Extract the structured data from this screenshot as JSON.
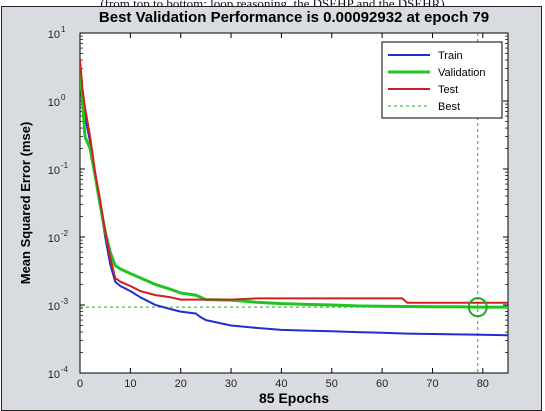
{
  "caption": "(from top to bottom: loop reasoning, the DSEHP and the DSEHR)",
  "chart_data": {
    "type": "line",
    "title": "Best Validation Performance is 0.00092932 at epoch 79",
    "xlabel": "85 Epochs",
    "ylabel": "Mean Squared Error  (mse)",
    "xlim": [
      0,
      85
    ],
    "ylim": [
      0.0001,
      10
    ],
    "yscale": "log",
    "grid": false,
    "legend_position": "top-right",
    "x_ticks": [
      "0",
      "10",
      "20",
      "30",
      "40",
      "50",
      "60",
      "70",
      "80"
    ],
    "y_ticks": [
      {
        "base": "10",
        "exp": "-4"
      },
      {
        "base": "10",
        "exp": "-3"
      },
      {
        "base": "10",
        "exp": "-2"
      },
      {
        "base": "10",
        "exp": "-1"
      },
      {
        "base": "10",
        "exp": "0"
      },
      {
        "base": "10",
        "exp": "1"
      }
    ],
    "series": [
      {
        "name": "Train",
        "color": "#1f2fcf",
        "width": 2,
        "dash": "none",
        "x": [
          0,
          0.5,
          1,
          2,
          3,
          4,
          5,
          6,
          7,
          8,
          10,
          12,
          15,
          18,
          20,
          23,
          24,
          25,
          30,
          35,
          40,
          45,
          50,
          55,
          60,
          65,
          70,
          75,
          80,
          85
        ],
        "y": [
          3,
          1.3,
          0.6,
          0.25,
          0.08,
          0.03,
          0.01,
          0.004,
          0.0022,
          0.0019,
          0.0016,
          0.0013,
          0.001,
          0.00087,
          0.0008,
          0.00075,
          0.00066,
          0.0006,
          0.0005,
          0.00046,
          0.00043,
          0.00042,
          0.00041,
          0.0004,
          0.00039,
          0.00038,
          0.000375,
          0.00037,
          0.000365,
          0.00036
        ]
      },
      {
        "name": "Validation",
        "color": "#22c422",
        "width": 3,
        "dash": "none",
        "x": [
          0,
          0.5,
          1,
          2,
          3,
          4,
          5,
          6,
          7,
          8,
          10,
          12,
          15,
          18,
          20,
          23,
          24,
          25,
          30,
          35,
          40,
          45,
          50,
          55,
          60,
          65,
          70,
          75,
          79,
          85
        ],
        "y": [
          3,
          1.0,
          0.3,
          0.2,
          0.08,
          0.03,
          0.012,
          0.006,
          0.0038,
          0.0034,
          0.0029,
          0.0025,
          0.002,
          0.0017,
          0.0015,
          0.0014,
          0.0013,
          0.0012,
          0.00118,
          0.0011,
          0.00105,
          0.00102,
          0.001,
          0.00097,
          0.00096,
          0.00095,
          0.00094,
          0.00094,
          0.00093,
          0.00093
        ]
      },
      {
        "name": "Test",
        "color": "#cf2020",
        "width": 2,
        "dash": "none",
        "x": [
          0,
          0.5,
          1,
          2,
          3,
          4,
          5,
          6,
          7,
          8,
          10,
          12,
          15,
          18,
          20,
          23,
          25,
          30,
          35,
          40,
          45,
          50,
          55,
          60,
          64,
          65,
          70,
          75,
          80,
          85
        ],
        "y": [
          4,
          1.5,
          0.8,
          0.3,
          0.09,
          0.035,
          0.012,
          0.005,
          0.0025,
          0.0022,
          0.0019,
          0.0016,
          0.0014,
          0.0013,
          0.0012,
          0.0012,
          0.0012,
          0.0012,
          0.00125,
          0.00125,
          0.00125,
          0.00125,
          0.00125,
          0.00125,
          0.00125,
          0.00108,
          0.00108,
          0.00108,
          0.00108,
          0.00108
        ]
      }
    ],
    "best": {
      "name": "Best",
      "color": "#22a822",
      "epoch": 79,
      "value": 0.00092932
    }
  }
}
